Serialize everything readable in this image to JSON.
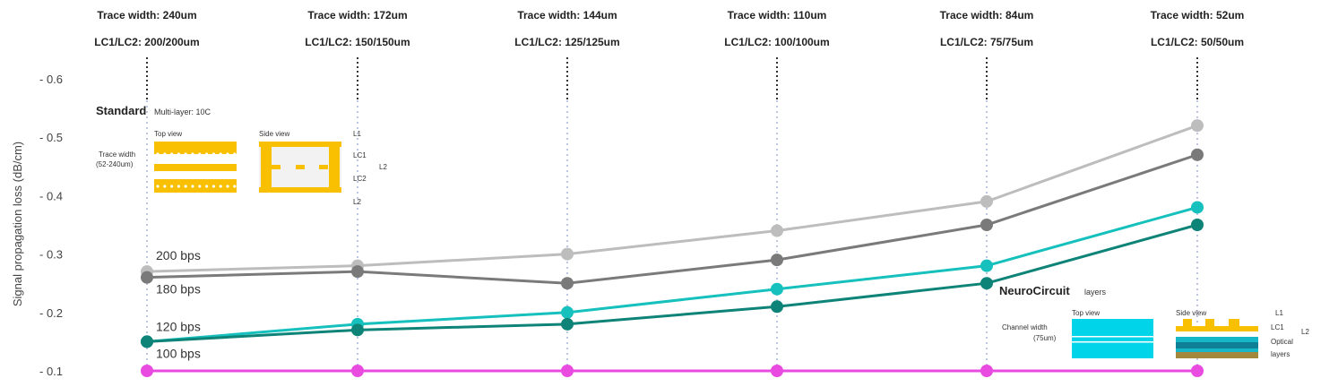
{
  "chart_data": {
    "type": "line",
    "ylabel": "Signal propagation loss (dB/cm)",
    "yticks": [
      "0.1",
      "0.2",
      "0.3",
      "0.4",
      "0.5",
      "0.6"
    ],
    "ylim": [
      0.1,
      0.6
    ],
    "columns": [
      {
        "trace": "Trace width: 240um",
        "layer": "LC1/LC2: 200/200um"
      },
      {
        "trace": "Trace width: 172um",
        "layer": "LC1/LC2: 150/150um"
      },
      {
        "trace": "Trace width: 144um",
        "layer": "LC1/LC2: 125/125um"
      },
      {
        "trace": "Trace width: 110um",
        "layer": "LC1/LC2: 100/100um"
      },
      {
        "trace": "Trace width: 84um",
        "layer": "LC1/LC2: 75/75um"
      },
      {
        "trace": "Trace width: 52um",
        "layer": "LC1/LC2: 50/50um"
      }
    ],
    "series": [
      {
        "label": "200 bps",
        "color": "#bdbdbd",
        "values": [
          0.27,
          0.28,
          0.3,
          0.34,
          0.39,
          0.52
        ]
      },
      {
        "label": "180 bps",
        "color": "#7a7a7a",
        "values": [
          0.26,
          0.27,
          0.25,
          0.29,
          0.35,
          0.47
        ]
      },
      {
        "label": "120 bps",
        "color": "#16c0bd",
        "values": [
          0.15,
          0.18,
          0.2,
          0.24,
          0.28,
          0.38
        ]
      },
      {
        "label": "100 bps",
        "color": "#0e8378",
        "values": [
          0.15,
          0.17,
          0.18,
          0.21,
          0.25,
          0.35
        ]
      },
      {
        "label": "",
        "color": "#e94ae0",
        "values": [
          0.1,
          0.1,
          0.1,
          0.1,
          0.1,
          0.1
        ]
      }
    ]
  },
  "insets": {
    "standard": {
      "title": "Standard",
      "subtitle": "Multi-layer: 10C",
      "top_view": "Top view",
      "side_view": "Side view",
      "trace_width": "Trace width",
      "trace_width_value": "(52-240um)",
      "labels": [
        "L1",
        "LC1",
        "LC2",
        "L2"
      ],
      "l2_label": "L2",
      "color": "#f8c000"
    },
    "neuro": {
      "title": "NeuroCircuit",
      "subtitle": "layers",
      "top_view": "Top view",
      "side_view": "Side view",
      "channel_width": "Channel width",
      "channel_width_value": "(75um)",
      "labels": [
        "L1",
        "LC1",
        "Optical",
        "layers"
      ],
      "l2_label": "L2",
      "color": "#00d4e8"
    }
  }
}
